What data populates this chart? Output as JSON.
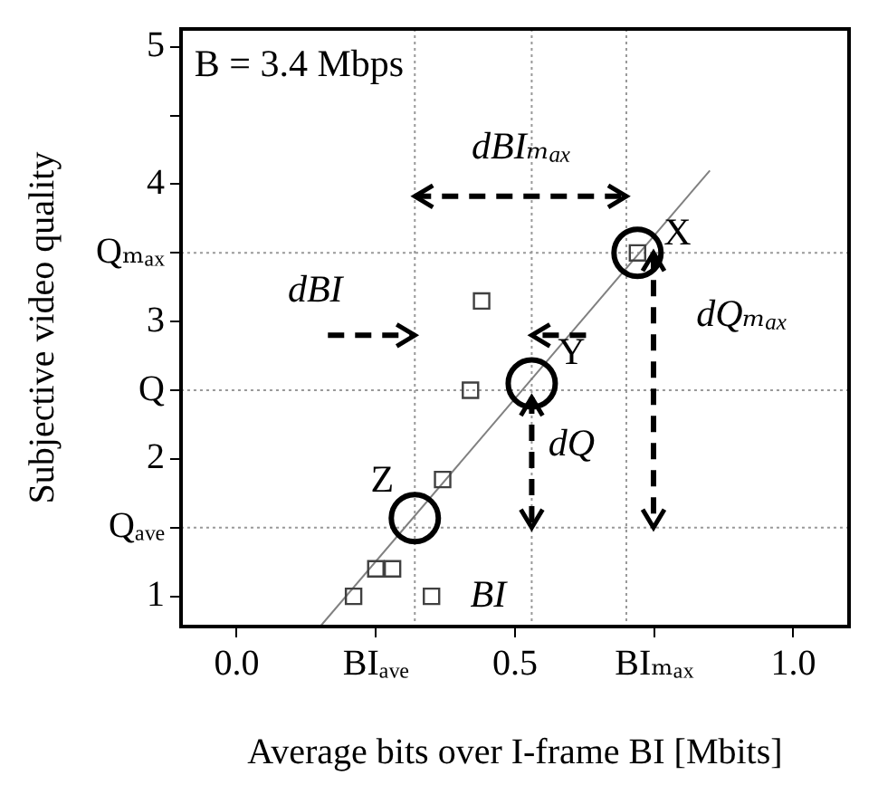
{
  "chart_data": {
    "type": "scatter",
    "xlabel": "Average bits over I-frame BI [Mbits]",
    "ylabel": "Subjective video quality",
    "xlim": [
      -0.1,
      1.1
    ],
    "ylim": [
      0.78,
      5.13
    ],
    "xticks": [
      {
        "value": 0,
        "label": "0.0"
      },
      {
        "value": 0.25,
        "label": "BIₐᵥₑ"
      },
      0.5,
      {
        "value": 0.75,
        "label": "BIₘₐₓ"
      },
      {
        "value": 1,
        "label": "1.0"
      }
    ],
    "yticks": [
      1,
      {
        "value": 1.5,
        "label": "Qₐᵥₑ"
      },
      2,
      {
        "value": 2.5,
        "label": "Q"
      },
      3,
      {
        "value": 3.5,
        "label": "Qₘₐₓ"
      },
      4,
      {
        "value": 4.5,
        "label": null
      },
      5
    ],
    "series": [
      {
        "marker": "square",
        "color": "#404040",
        "x": [
          0.21,
          0.25,
          0.28,
          0.35,
          0.37,
          0.42,
          0.44,
          0.72
        ],
        "values": [
          1.0,
          1.2,
          1.2,
          1.0,
          1.85,
          2.5,
          3.15,
          3.5
        ]
      },
      {
        "marker": "circle",
        "color": "#000000",
        "x": [
          0.72,
          0.53,
          0.32
        ],
        "values": [
          3.5,
          2.55,
          1.57
        ]
      },
      {
        "type": "line",
        "marker": "none",
        "color": "#808080",
        "x": [
          0.15,
          0.85
        ],
        "values": [
          0.78,
          4.1
        ]
      }
    ],
    "ref_lines": [
      {
        "axis": "y",
        "value": 3.5,
        "color": "#999999",
        "line_style": "dotted"
      },
      {
        "axis": "y",
        "value": 2.5,
        "color": "#999999",
        "line_style": "dotted"
      },
      {
        "axis": "y",
        "value": 1.5,
        "color": "#999999",
        "line_style": "dotted"
      },
      {
        "axis": "x",
        "value": 0.32,
        "color": "#999999",
        "line_style": "dotted"
      },
      {
        "axis": "x",
        "value": 0.53,
        "color": "#999999",
        "line_style": "dotted"
      },
      {
        "axis": "x",
        "value": 0.7,
        "color": "#999999",
        "line_style": "dotted"
      }
    ],
    "annotations": [
      "B = 3.4 Mbps",
      {
        "text": "X",
        "x": 0.72,
        "y": 3.5
      },
      {
        "text": "Y",
        "x": 0.53,
        "y": 2.55
      },
      {
        "text": "Z",
        "x": 0.32,
        "y": 1.57
      },
      "dBIₘₐₓ",
      {
        "text": "dBI",
        "x": 0.32,
        "y": 2.9
      },
      {
        "text": "dQ",
        "x": 0.53,
        "y": 2.1
      },
      "dQₘₐₓ",
      {
        "text": "BI",
        "x": 0.53,
        "y": 1.0
      }
    ],
    "grid": false,
    "legend": false
  }
}
